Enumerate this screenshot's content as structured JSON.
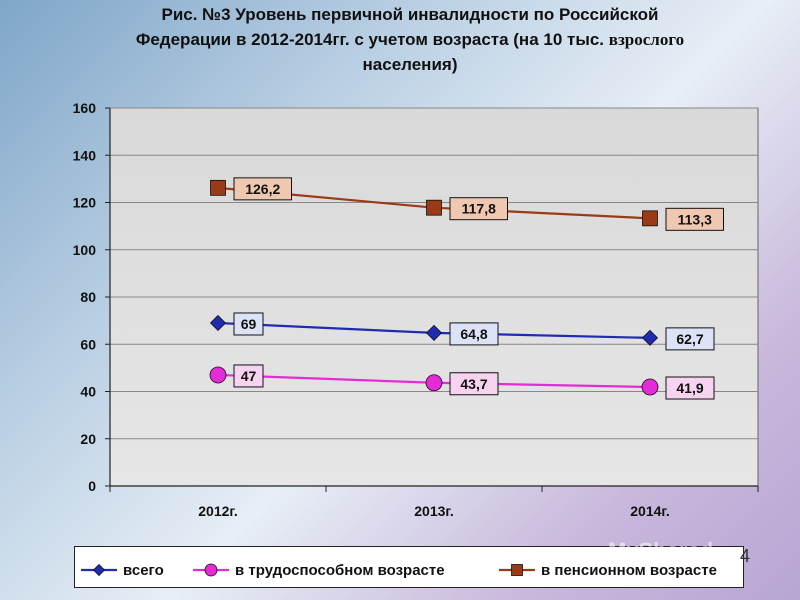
{
  "title": {
    "line1": "Рис. №3 Уровень первичной инвалидности по Российской",
    "line2a": "Федерации в 2012-2014гг. с учетом возраста (на 10 тыс.",
    "line2b": "взрослого",
    "line3": "населения)"
  },
  "chart_data": {
    "type": "line",
    "categories": [
      "2012г.",
      "2013г.",
      "2014г."
    ],
    "ylim": [
      0,
      160
    ],
    "yticks": [
      0,
      20,
      40,
      60,
      80,
      100,
      120,
      140,
      160
    ],
    "grid": true,
    "legend_position": "bottom",
    "series": [
      {
        "name": "всего",
        "values": [
          69,
          64.8,
          62.7
        ],
        "labels": [
          "69",
          "64,8",
          "62,7"
        ],
        "color": "#1f2bb0",
        "marker": "diamond",
        "label_bg": "#dde3f7"
      },
      {
        "name": "в трудоспособном возрасте",
        "values": [
          47,
          43.7,
          41.9
        ],
        "labels": [
          "47",
          "43,7",
          "41,9"
        ],
        "color": "#e52bd6",
        "marker": "circle",
        "label_bg": "#f6d3ee"
      },
      {
        "name": "в пенсионном возрасте",
        "values": [
          126.2,
          117.8,
          113.3
        ],
        "labels": [
          "126,2",
          "117,8",
          "113,3"
        ],
        "color": "#9a3a16",
        "marker": "square",
        "label_bg": "#f0c8b2"
      }
    ]
  },
  "watermark": {
    "text": "MyShared",
    "page_number": "4"
  }
}
